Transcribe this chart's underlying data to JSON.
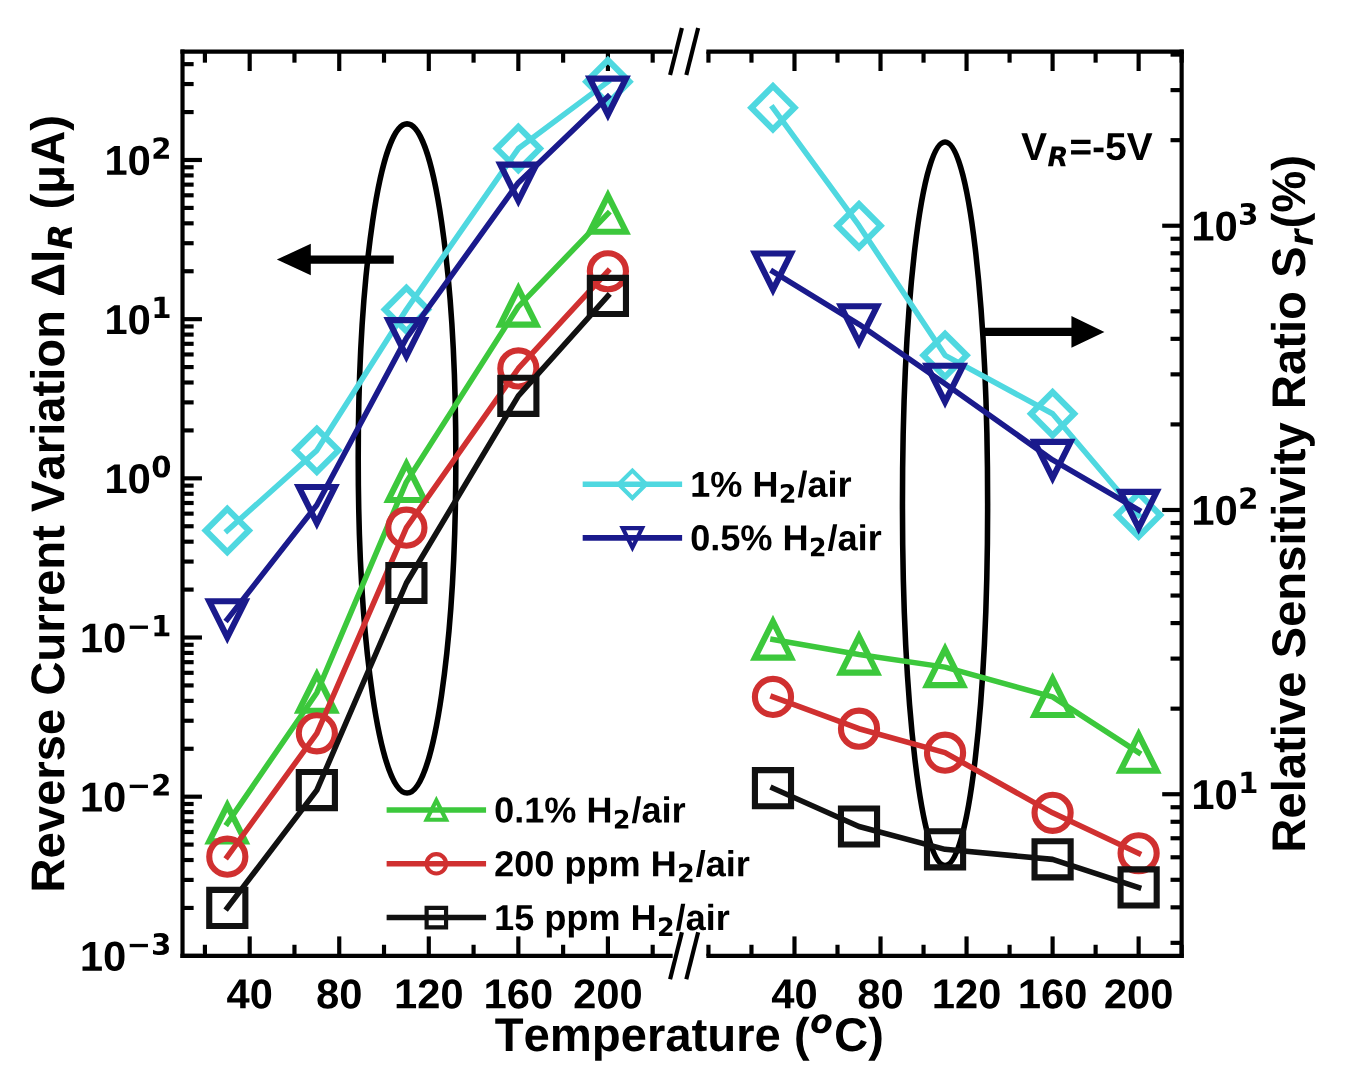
{
  "chart_data": [
    {
      "type": "line",
      "xlabel": "Temperature ($^{o}$C)",
      "ylabel": "Reverse Current Variation ΔI$_{R}$ (μA)",
      "log": true,
      "x": [
        30,
        70,
        110,
        160,
        200
      ],
      "xlim": [
        10,
        228
      ],
      "xticks": [
        40,
        80,
        120,
        160,
        200
      ],
      "ylim": [
        0.001,
        480
      ],
      "yticks": [
        {
          "value": 0.001,
          "label": "10$^{−3}$"
        },
        {
          "value": 0.01,
          "label": "10$^{−2}$"
        },
        {
          "value": 0.1,
          "label": "10$^{−1}$"
        },
        {
          "value": 1,
          "label": "10$^{0}$"
        },
        {
          "value": 10,
          "label": "10$^{1}$"
        },
        {
          "value": 100,
          "label": "10$^{2}$"
        }
      ],
      "legend": "bottom right",
      "grid": false,
      "line_style": "solid",
      "series": [
        {
          "name": "1% H$_{2}$/air",
          "color": "#4fd8e0",
          "marker": "diamond",
          "values": [
            0.47,
            1.5,
            11.5,
            118,
            310
          ]
        },
        {
          "name": "0.5% H$_{2}$/air",
          "color": "#1a1a8c",
          "marker": "triangle_down",
          "values": [
            0.13,
            0.68,
            7.6,
            72,
            250
          ]
        },
        {
          "name": "0.1% H$_{2}$/air",
          "color": "#3cc83c",
          "marker": "triangle",
          "values": [
            0.0068,
            0.045,
            0.95,
            12,
            46
          ]
        },
        {
          "name": "200 ppm H$_{2}$/air",
          "color": "#d03030",
          "marker": "circle",
          "values": [
            0.0042,
            0.025,
            0.49,
            4.9,
            20
          ]
        },
        {
          "name": "15 ppm H$_{2}$/air",
          "color": "#111111",
          "marker": "square",
          "values": [
            0.002,
            0.011,
            0.22,
            3.3,
            14
          ]
        }
      ]
    },
    {
      "type": "line",
      "y2label": "Relative Sensitivity Ratio S$_{r}$(%)",
      "log": "y2",
      "annotations": [
        "V$_{R}$=-5V"
      ],
      "x": [
        30,
        70,
        110,
        160,
        200
      ],
      "xlim": [
        0,
        220
      ],
      "xticks": [
        40,
        80,
        120,
        160,
        200
      ],
      "y2lim": [
        2.7,
        4100
      ],
      "y2ticks": [
        {
          "value": 10,
          "label": "10$^{1}$"
        },
        {
          "value": 100,
          "label": "10$^{2}$"
        },
        {
          "value": 1000,
          "label": "10$^{3}$"
        }
      ],
      "grid": false,
      "line_style": "solid",
      "series": [
        {
          "color": "#4fd8e0",
          "marker": "diamond",
          "axis": "y2",
          "values": [
            2600,
            1000,
            350,
            218,
            96
          ]
        },
        {
          "color": "#1a1a8c",
          "marker": "triangle_down",
          "axis": "y2",
          "values": [
            690,
            450,
            278,
            150,
            100
          ]
        },
        {
          "color": "#3cc83c",
          "marker": "triangle",
          "axis": "y2",
          "values": [
            35,
            31,
            28,
            22,
            14
          ]
        },
        {
          "color": "#d03030",
          "marker": "circle",
          "axis": "y2",
          "values": [
            22,
            17,
            14,
            8.6,
            6.2
          ]
        },
        {
          "color": "#111111",
          "marker": "square",
          "axis": "y2",
          "values": [
            10.5,
            7.7,
            6.4,
            5.9,
            4.7
          ]
        }
      ]
    }
  ]
}
